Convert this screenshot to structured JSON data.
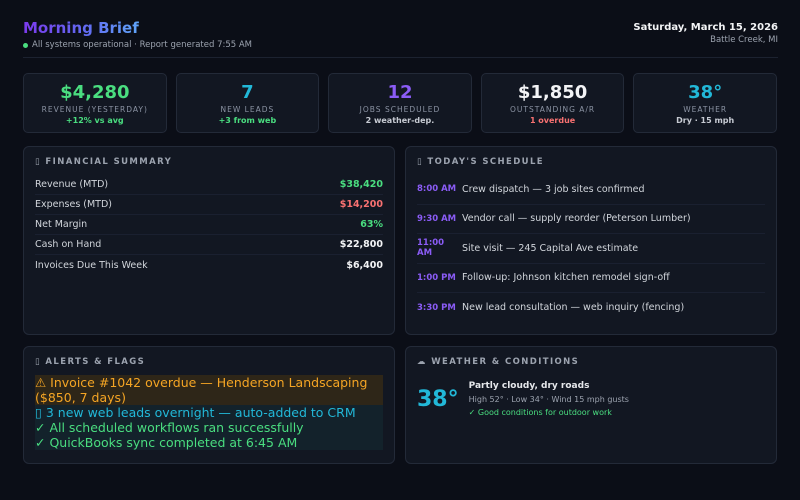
{
  "header": {
    "title": "Morning Brief",
    "status": "All systems operational · Report generated 7:55 AM",
    "date": "Saturday, March 15, 2026",
    "location": "Battle Creek, MI"
  },
  "colors": {
    "green": "#4ade80",
    "red": "#f87171",
    "cyan": "#22b8d8",
    "purple": "#8b5cf6",
    "orange": "#f5a524"
  },
  "cards": [
    {
      "value": "$4,280",
      "label": "REVENUE (YESTERDAY)",
      "sub": "+12% vs avg",
      "vcolor": "#4ade80",
      "scolor": "#4ade80"
    },
    {
      "value": "7",
      "label": "NEW LEADS",
      "sub": "+3 from web",
      "vcolor": "#22b8d8",
      "scolor": "#4ade80"
    },
    {
      "value": "12",
      "label": "JOBS SCHEDULED",
      "sub": "2 weather-dep.",
      "vcolor": "#8b5cf6",
      "scolor": "#c7cbd3"
    },
    {
      "value": "$1,850",
      "label": "OUTSTANDING A/R",
      "sub": "1 overdue",
      "vcolor": "#f3f4f6",
      "scolor": "#f87171"
    },
    {
      "value": "38°",
      "label": "WEATHER",
      "sub": "Dry · 15 mph",
      "vcolor": "#22b8d8",
      "scolor": "#c7cbd3"
    }
  ],
  "financial": {
    "heading": "▯ FINANCIAL SUMMARY",
    "rows": [
      {
        "label": "Revenue (MTD)",
        "value": "$38,420",
        "color": "#4ade80"
      },
      {
        "label": "Expenses (MTD)",
        "value": "$14,200",
        "color": "#f87171"
      },
      {
        "label": "Net Margin",
        "value": "63%",
        "color": "#4ade80"
      },
      {
        "label": "Cash on Hand",
        "value": "$22,800",
        "color": "#f3f4f6"
      },
      {
        "label": "Invoices Due This Week",
        "value": "$6,400",
        "color": "#f3f4f6"
      }
    ]
  },
  "schedule": {
    "heading": "▯ TODAY'S SCHEDULE",
    "items": [
      {
        "time": "8:00 AM",
        "text": "Crew dispatch — 3 job sites confirmed"
      },
      {
        "time": "9:30 AM",
        "text": "Vendor call — supply reorder (Peterson Lumber)"
      },
      {
        "time": "11:00 AM",
        "text": "Site visit — 245 Capital Ave estimate"
      },
      {
        "time": "1:00 PM",
        "text": "Follow-up: Johnson kitchen remodel sign-off"
      },
      {
        "time": "3:30 PM",
        "text": "New lead consultation — web inquiry (fencing)"
      }
    ]
  },
  "alerts": {
    "heading": "▯ ALERTS & FLAGS",
    "items": [
      {
        "text": "⚠ Invoice #1042 overdue — Henderson Landscaping ($850, 7 days)",
        "color": "#f5a524",
        "bg": "#2e2618"
      },
      {
        "text": "▯ 3 new web leads overnight — auto-added to CRM",
        "color": "#22b8d8",
        "bg": "#13222b"
      },
      {
        "text": "✓ All scheduled workflows ran successfully",
        "color": "#4ade80",
        "bg": "#13222b"
      },
      {
        "text": "✓ QuickBooks sync completed at 6:45 AM",
        "color": "#4ade80",
        "bg": "#13222b"
      }
    ]
  },
  "weather": {
    "heading": "☁ WEATHER & CONDITIONS",
    "temp": "38°",
    "summary": "Partly cloudy, dry roads",
    "details": "High 52° · Low 34° · Wind 15 mph gusts",
    "note": "✓ Good conditions for outdoor work"
  }
}
